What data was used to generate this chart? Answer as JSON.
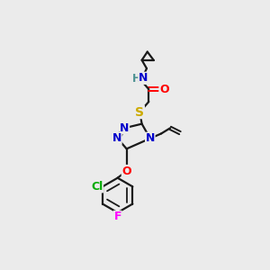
{
  "bg_color": "#ebebeb",
  "bond_color": "#1a1a1a",
  "colors": {
    "N": "#0000cc",
    "O": "#ff0000",
    "S": "#ccaa00",
    "Cl": "#00aa00",
    "F": "#ff00ff",
    "H": "#4a9090",
    "C": "#1a1a1a"
  },
  "font_size": 9,
  "title": ""
}
